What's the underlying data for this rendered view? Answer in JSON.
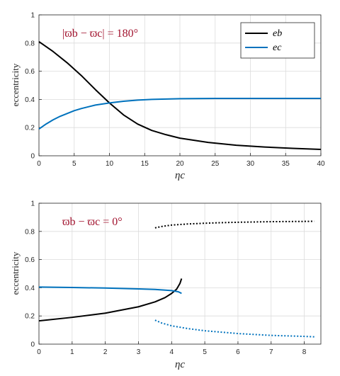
{
  "chart_data": [
    {
      "type": "line",
      "title": "",
      "annotation": "|ϖb − ϖc| = 180°",
      "xlabel": "ηc",
      "ylabel": "eccentricity",
      "xlim": [
        0,
        40
      ],
      "ylim": [
        0,
        1
      ],
      "xticks": [
        0,
        5,
        10,
        15,
        20,
        25,
        30,
        35,
        40
      ],
      "yticks": [
        0,
        0.2,
        0.4,
        0.6,
        0.8,
        1
      ],
      "grid": true,
      "legend": "top-right",
      "series": [
        {
          "name": "eb",
          "color": "#000000",
          "style": "solid",
          "x": [
            0,
            2,
            4,
            6,
            8,
            10,
            12,
            14,
            16,
            18,
            20,
            24,
            28,
            32,
            36,
            40
          ],
          "y": [
            0.81,
            0.74,
            0.66,
            0.57,
            0.47,
            0.375,
            0.29,
            0.225,
            0.18,
            0.15,
            0.125,
            0.095,
            0.075,
            0.062,
            0.053,
            0.045
          ]
        },
        {
          "name": "ec",
          "color": "#0072bd",
          "style": "solid",
          "x": [
            0,
            1,
            2,
            3,
            4,
            5,
            6,
            8,
            10,
            12,
            14,
            16,
            20,
            25,
            30,
            35,
            40
          ],
          "y": [
            0.19,
            0.225,
            0.255,
            0.28,
            0.3,
            0.32,
            0.335,
            0.36,
            0.375,
            0.387,
            0.395,
            0.4,
            0.405,
            0.407,
            0.407,
            0.407,
            0.407
          ]
        }
      ]
    },
    {
      "type": "line",
      "title": "",
      "annotation": "ϖb − ϖc = 0°",
      "xlabel": "ηc",
      "ylabel": "eccentricity",
      "xlim": [
        0,
        8.5
      ],
      "ylim": [
        0,
        1
      ],
      "xticks": [
        0,
        1,
        2,
        3,
        4,
        5,
        6,
        7,
        8
      ],
      "yticks": [
        0,
        0.2,
        0.4,
        0.6,
        0.8,
        1
      ],
      "grid": true,
      "series": [
        {
          "color": "#000000",
          "style": "solid",
          "x": [
            0,
            1,
            2,
            3,
            3.5,
            3.8,
            4.0,
            4.15,
            4.25,
            4.3
          ],
          "y": [
            0.165,
            0.19,
            0.22,
            0.265,
            0.3,
            0.33,
            0.36,
            0.39,
            0.43,
            0.465
          ]
        },
        {
          "color": "#0072bd",
          "style": "solid",
          "x": [
            0,
            1,
            2,
            3,
            3.5,
            4.0,
            4.2,
            4.3
          ],
          "y": [
            0.405,
            0.402,
            0.398,
            0.392,
            0.388,
            0.38,
            0.372,
            0.36
          ]
        },
        {
          "color": "#000000",
          "style": "dotted",
          "x": [
            3.5,
            3.7,
            4.0,
            4.5,
            5,
            5.5,
            6,
            7,
            8,
            8.3
          ],
          "y": [
            0.825,
            0.835,
            0.845,
            0.853,
            0.858,
            0.862,
            0.865,
            0.869,
            0.871,
            0.872
          ]
        },
        {
          "color": "#0072bd",
          "style": "dotted",
          "x": [
            3.5,
            3.7,
            4.0,
            4.5,
            5,
            5.5,
            6,
            7,
            8,
            8.3
          ],
          "y": [
            0.17,
            0.15,
            0.13,
            0.11,
            0.095,
            0.085,
            0.075,
            0.062,
            0.055,
            0.052
          ]
        }
      ]
    }
  ]
}
